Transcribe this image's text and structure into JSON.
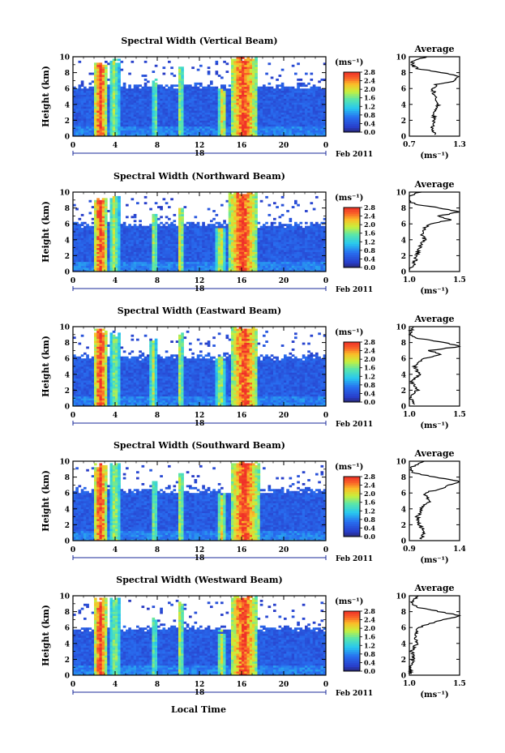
{
  "figure": {
    "common_xlabel": "Local Time",
    "date_label": "Feb 2011",
    "day_label": "18",
    "cbar_units": "(ms⁻¹)",
    "cbar_ticks": [
      "0.0",
      "0.4",
      "0.8",
      "1.2",
      "1.6",
      "2.0",
      "2.4",
      "2.8"
    ],
    "avg_title": "Average",
    "avg_xlabel": "(ms⁻¹)"
  },
  "chart_data": [
    {
      "type": "heatmap",
      "title": "Spectral Width (Vertical Beam)",
      "ylabel": "Height (km)",
      "x_ticks": [
        "0",
        "4",
        "8",
        "12",
        "16",
        "20",
        "0"
      ],
      "y_ticks": [
        "0",
        "2",
        "4",
        "6",
        "8",
        "10"
      ],
      "xlim": [
        0,
        24
      ],
      "ylim": [
        0,
        10
      ],
      "colorbar": {
        "label": "(ms⁻¹)",
        "range": [
          0.0,
          2.8
        ]
      },
      "top_echo_km": 6.3,
      "bursts": [
        {
          "t": 2.6,
          "w": 0.7,
          "v": 2.8,
          "top": 9.2
        },
        {
          "t": 3.9,
          "w": 0.5,
          "v": 1.8,
          "top": 9.6
        },
        {
          "t": 7.8,
          "w": 0.3,
          "v": 1.7,
          "top": 7.0
        },
        {
          "t": 10.2,
          "w": 0.3,
          "v": 1.9,
          "top": 8.8
        },
        {
          "t": 14.2,
          "w": 0.4,
          "v": 2.2,
          "top": 6.0
        },
        {
          "t": 16.2,
          "w": 1.3,
          "v": 2.8,
          "top": 9.9
        }
      ],
      "avg_profile": {
        "xlim": [
          0.7,
          1.3
        ],
        "x_ticks": [
          "0.7",
          "1.3"
        ],
        "height_km": [
          0.3,
          1,
          2,
          3,
          4,
          5,
          6,
          6.5,
          7,
          7.5,
          8,
          8.5,
          9,
          9.5,
          10
        ],
        "values": [
          1.0,
          0.97,
          1.0,
          0.98,
          1.05,
          1.0,
          0.98,
          1.02,
          1.25,
          1.3,
          1.1,
          0.8,
          0.72,
          0.75,
          0.9
        ]
      }
    },
    {
      "type": "heatmap",
      "title": "Spectral Width (Northward Beam)",
      "ylabel": "Height (km)",
      "x_ticks": [
        "0",
        "4",
        "8",
        "12",
        "16",
        "20",
        "0"
      ],
      "y_ticks": [
        "0",
        "2",
        "4",
        "6",
        "8",
        "10"
      ],
      "xlim": [
        0,
        24
      ],
      "ylim": [
        0,
        10
      ],
      "colorbar": {
        "label": "(ms⁻¹)",
        "range": [
          0.0,
          2.8
        ]
      },
      "top_echo_km": 6.0,
      "bursts": [
        {
          "t": 2.6,
          "w": 0.7,
          "v": 2.8,
          "top": 9.2
        },
        {
          "t": 3.9,
          "w": 0.5,
          "v": 1.9,
          "top": 9.6
        },
        {
          "t": 7.7,
          "w": 0.3,
          "v": 2.0,
          "top": 7.5
        },
        {
          "t": 10.2,
          "w": 0.3,
          "v": 2.2,
          "top": 8.0
        },
        {
          "t": 14.0,
          "w": 0.4,
          "v": 2.2,
          "top": 5.5
        },
        {
          "t": 16.1,
          "w": 1.4,
          "v": 2.8,
          "top": 9.9
        }
      ],
      "avg_profile": {
        "xlim": [
          1.0,
          1.5
        ],
        "x_ticks": [
          "1.0",
          "1.5"
        ],
        "height_km": [
          0.3,
          1,
          2,
          3,
          4,
          5,
          6,
          6.5,
          7,
          7.5,
          8,
          8.5,
          9,
          9.5,
          10
        ],
        "values": [
          1.0,
          1.05,
          1.07,
          1.1,
          1.15,
          1.12,
          1.2,
          1.4,
          1.3,
          1.5,
          1.3,
          1.05,
          0.98,
          1.0,
          1.1
        ]
      }
    },
    {
      "type": "heatmap",
      "title": "Spectral Width (Eastward Beam)",
      "ylabel": "Height (km)",
      "x_ticks": [
        "0",
        "4",
        "8",
        "12",
        "16",
        "20",
        "0"
      ],
      "y_ticks": [
        "0",
        "2",
        "4",
        "6",
        "8",
        "10"
      ],
      "xlim": [
        0,
        24
      ],
      "ylim": [
        0,
        10
      ],
      "colorbar": {
        "label": "(ms⁻¹)",
        "range": [
          0.0,
          2.8
        ]
      },
      "top_echo_km": 6.2,
      "bursts": [
        {
          "t": 2.6,
          "w": 0.7,
          "v": 2.8,
          "top": 9.5
        },
        {
          "t": 4.0,
          "w": 0.5,
          "v": 1.8,
          "top": 9.0
        },
        {
          "t": 7.6,
          "w": 0.3,
          "v": 1.9,
          "top": 8.2
        },
        {
          "t": 10.2,
          "w": 0.3,
          "v": 2.0,
          "top": 9.0
        },
        {
          "t": 14.0,
          "w": 0.4,
          "v": 2.0,
          "top": 6.0
        },
        {
          "t": 16.3,
          "w": 1.3,
          "v": 2.8,
          "top": 9.9
        }
      ],
      "avg_profile": {
        "xlim": [
          1.0,
          1.5
        ],
        "x_ticks": [
          "1.0",
          "1.5"
        ],
        "height_km": [
          0.3,
          1,
          2,
          3,
          4,
          5,
          6,
          6.5,
          7,
          7.5,
          8,
          8.5,
          9,
          9.5,
          10
        ],
        "values": [
          1.05,
          1.0,
          1.08,
          1.02,
          1.1,
          1.05,
          1.15,
          1.3,
          1.2,
          1.5,
          1.35,
          1.1,
          1.0,
          1.02,
          1.05
        ]
      }
    },
    {
      "type": "heatmap",
      "title": "Spectral Width (Southward Beam)",
      "ylabel": "Height (km)",
      "x_ticks": [
        "0",
        "4",
        "8",
        "12",
        "16",
        "20",
        "0"
      ],
      "y_ticks": [
        "0",
        "2",
        "4",
        "6",
        "8",
        "10"
      ],
      "xlim": [
        0,
        24
      ],
      "ylim": [
        0,
        10
      ],
      "colorbar": {
        "label": "(ms⁻¹)",
        "range": [
          0.0,
          2.8
        ]
      },
      "top_echo_km": 6.3,
      "bursts": [
        {
          "t": 2.6,
          "w": 0.7,
          "v": 2.8,
          "top": 9.5
        },
        {
          "t": 4.0,
          "w": 0.5,
          "v": 1.9,
          "top": 9.6
        },
        {
          "t": 7.7,
          "w": 0.3,
          "v": 1.8,
          "top": 7.5
        },
        {
          "t": 10.2,
          "w": 0.3,
          "v": 2.0,
          "top": 8.5
        },
        {
          "t": 14.1,
          "w": 0.4,
          "v": 2.1,
          "top": 6.0
        },
        {
          "t": 16.3,
          "w": 1.4,
          "v": 2.8,
          "top": 9.9
        }
      ],
      "avg_profile": {
        "xlim": [
          0.9,
          1.4
        ],
        "x_ticks": [
          "0.9",
          "1.4"
        ],
        "height_km": [
          0.3,
          1,
          2,
          3,
          4,
          5,
          6,
          6.5,
          7,
          7.5,
          8,
          8.5,
          9,
          9.5,
          10
        ],
        "values": [
          1.02,
          1.05,
          1.0,
          0.98,
          1.02,
          1.1,
          1.05,
          1.2,
          1.3,
          1.4,
          1.15,
          0.95,
          0.9,
          0.95,
          1.05
        ]
      }
    },
    {
      "type": "heatmap",
      "title": "Spectral Width (Westward Beam)",
      "ylabel": "Height (km)",
      "x_ticks": [
        "0",
        "4",
        "8",
        "12",
        "16",
        "20",
        "0"
      ],
      "y_ticks": [
        "0",
        "2",
        "4",
        "6",
        "8",
        "10"
      ],
      "xlim": [
        0,
        24
      ],
      "ylim": [
        0,
        10
      ],
      "colorbar": {
        "label": "(ms⁻¹)",
        "range": [
          0.0,
          2.8
        ]
      },
      "top_echo_km": 5.9,
      "bursts": [
        {
          "t": 2.6,
          "w": 0.7,
          "v": 2.8,
          "top": 9.5
        },
        {
          "t": 4.0,
          "w": 0.5,
          "v": 1.8,
          "top": 9.6
        },
        {
          "t": 7.7,
          "w": 0.3,
          "v": 1.7,
          "top": 7.2
        },
        {
          "t": 10.2,
          "w": 0.3,
          "v": 2.0,
          "top": 9.0
        },
        {
          "t": 14.1,
          "w": 0.4,
          "v": 2.0,
          "top": 5.5
        },
        {
          "t": 16.2,
          "w": 1.3,
          "v": 2.8,
          "top": 9.9
        }
      ],
      "avg_profile": {
        "xlim": [
          1.0,
          1.5
        ],
        "x_ticks": [
          "1.0",
          "1.5"
        ],
        "height_km": [
          0.3,
          1,
          2,
          3,
          4,
          5,
          6,
          6.5,
          7,
          7.5,
          8,
          8.5,
          9,
          9.5,
          10
        ],
        "values": [
          1.02,
          1.0,
          1.05,
          1.02,
          1.08,
          1.05,
          1.1,
          1.2,
          1.35,
          1.5,
          1.3,
          1.1,
          1.02,
          1.05,
          1.08
        ]
      }
    }
  ]
}
